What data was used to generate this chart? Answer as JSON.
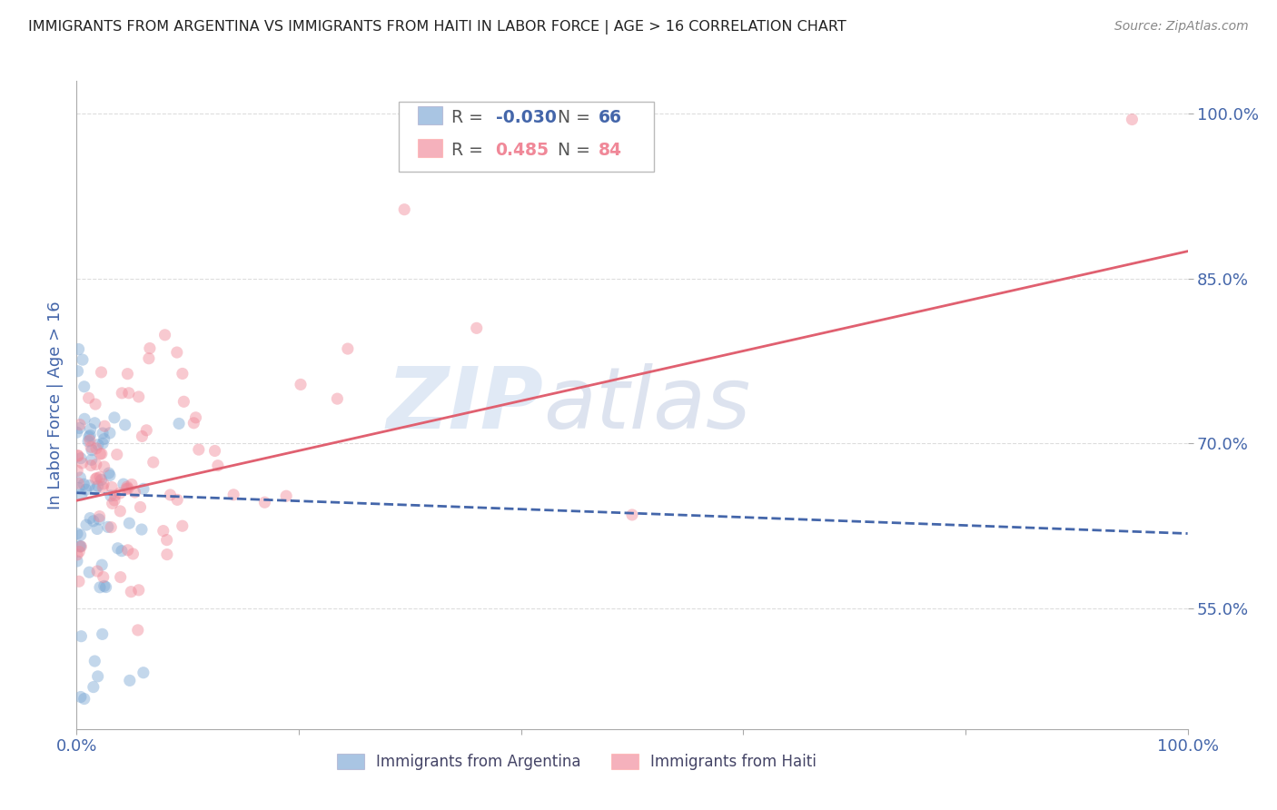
{
  "title": "IMMIGRANTS FROM ARGENTINA VS IMMIGRANTS FROM HAITI IN LABOR FORCE | AGE > 16 CORRELATION CHART",
  "source": "Source: ZipAtlas.com",
  "ylabel": "In Labor Force | Age > 16",
  "xlim": [
    0.0,
    1.0
  ],
  "ylim": [
    0.44,
    1.03
  ],
  "yticks": [
    0.55,
    0.7,
    0.85,
    1.0
  ],
  "ytick_labels": [
    "55.0%",
    "70.0%",
    "85.0%",
    "100.0%"
  ],
  "xticks": [
    0.0,
    0.2,
    0.4,
    0.6,
    0.8,
    1.0
  ],
  "xtick_labels": [
    "0.0%",
    "",
    "",
    "",
    "",
    "100.0%"
  ],
  "argentina_color": "#7BA7D4",
  "haiti_color": "#F08898",
  "trend_argentina_color": "#4466AA",
  "trend_haiti_color": "#E06070",
  "background_color": "#FFFFFF",
  "grid_color": "#DDDDDD",
  "title_color": "#222222",
  "axis_label_color": "#4466AA",
  "tick_color": "#4466AA",
  "watermark_color": "#C8D8EE",
  "dot_alpha": 0.45,
  "dot_size": 90,
  "trend_arg_x0": 0.0,
  "trend_arg_y0": 0.655,
  "trend_arg_x1": 1.0,
  "trend_arg_y1": 0.618,
  "trend_hai_x0": 0.0,
  "trend_hai_y0": 0.648,
  "trend_hai_x1": 1.0,
  "trend_hai_y1": 0.875
}
